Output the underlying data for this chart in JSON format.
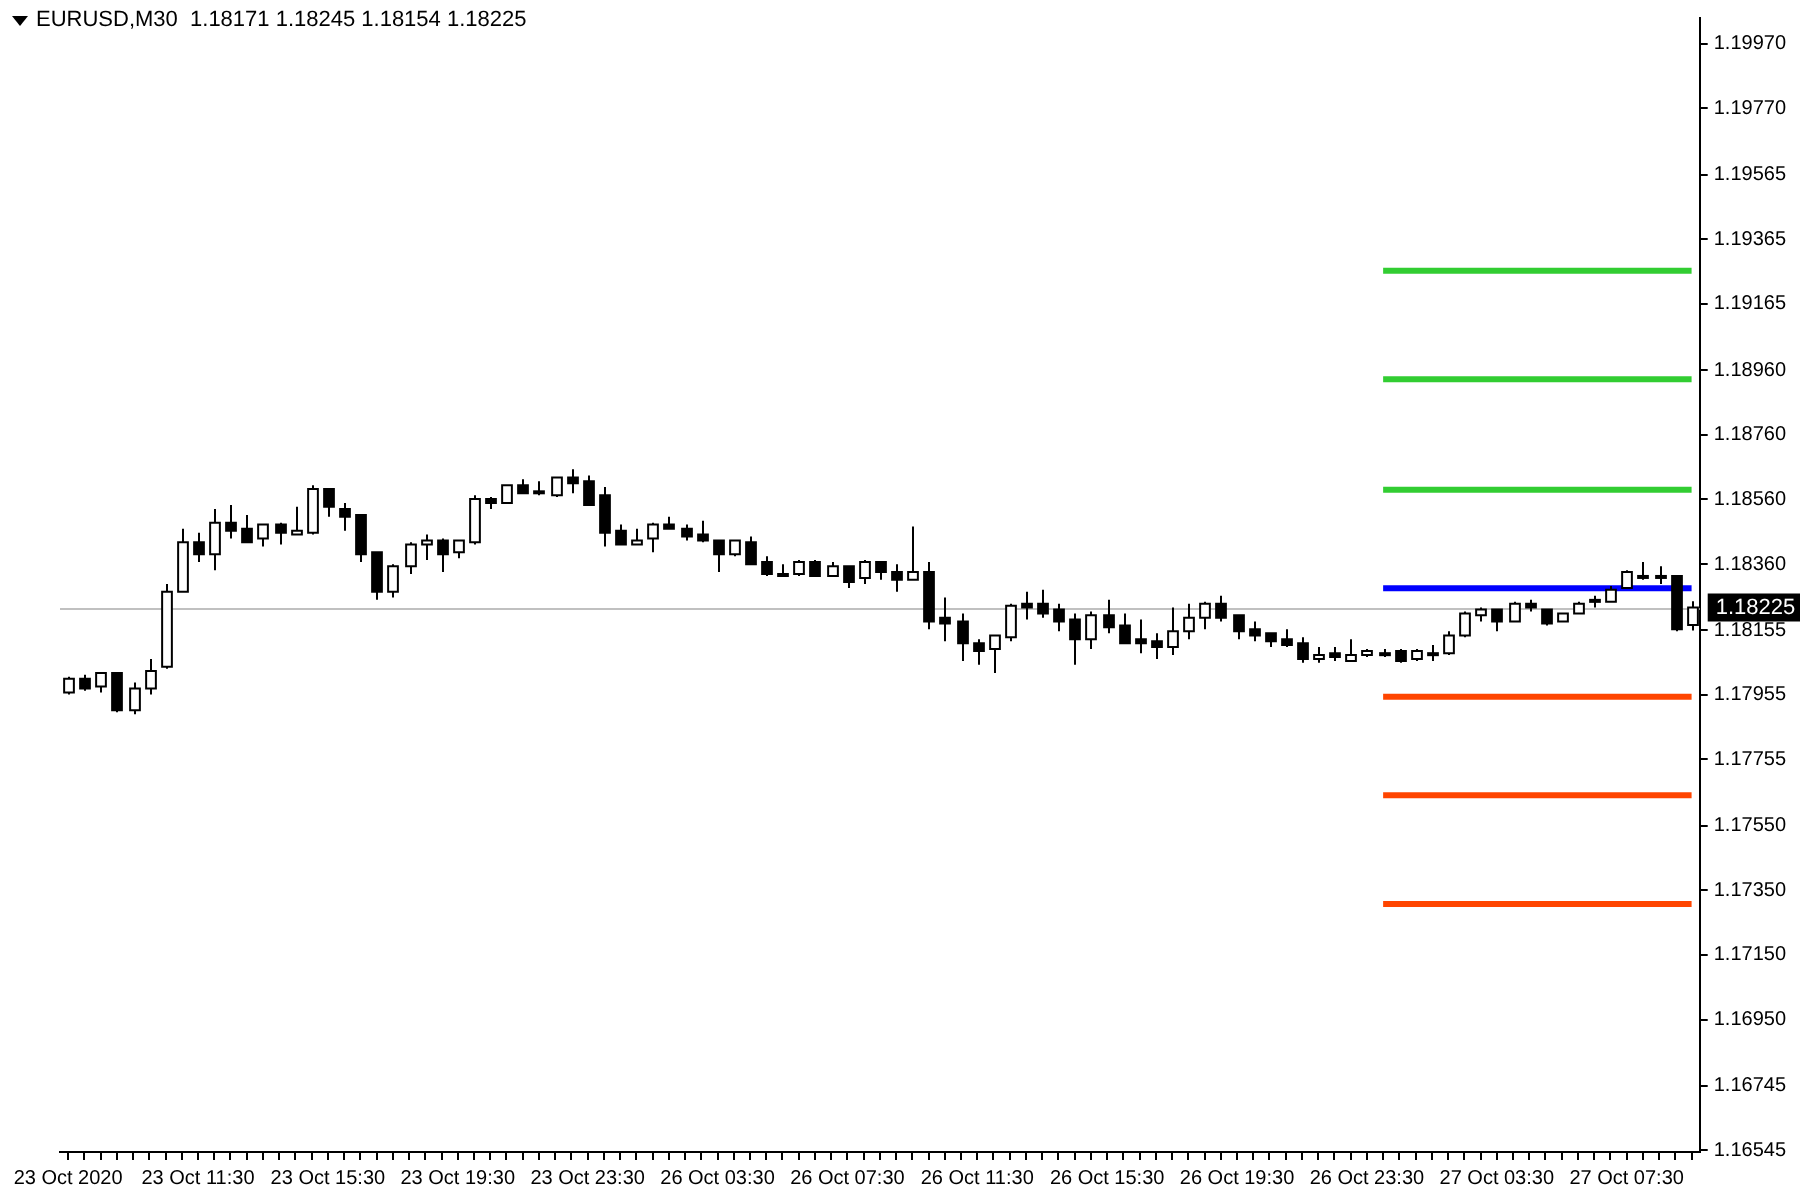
{
  "chart_data": {
    "type": "candlestick",
    "title": "EURUSD,M30  1.18171 1.18245 1.18154 1.18225",
    "categories": [
      "23 Oct 2020",
      null,
      null,
      null,
      null,
      null,
      null,
      null,
      "23 Oct 11:30",
      null,
      null,
      null,
      null,
      null,
      null,
      null,
      "23 Oct 15:30",
      null,
      null,
      null,
      null,
      null,
      null,
      null,
      "23 Oct 19:30",
      null,
      null,
      null,
      null,
      null,
      null,
      null,
      "23 Oct 23:30",
      null,
      null,
      null,
      null,
      null,
      null,
      null,
      "26 Oct 03:30",
      null,
      null,
      null,
      null,
      null,
      null,
      null,
      "26 Oct 07:30",
      null,
      null,
      null,
      null,
      null,
      null,
      null,
      "26 Oct 11:30",
      null,
      null,
      null,
      null,
      null,
      null,
      null,
      "26 Oct 15:30",
      null,
      null,
      null,
      null,
      null,
      null,
      null,
      "26 Oct 19:30",
      null,
      null,
      null,
      null,
      null,
      null,
      null,
      "26 Oct 23:30",
      null,
      null,
      null,
      null,
      null,
      null,
      null,
      "27 Oct 03:30",
      null,
      null,
      null,
      null,
      null,
      null,
      null,
      "27 Oct 07:30",
      null,
      null,
      null,
      null
    ],
    "ohlc": [
      [
        1.17962,
        1.18011,
        1.17956,
        1.18005
      ],
      [
        1.18005,
        1.18017,
        1.17968,
        1.17975
      ],
      [
        1.17981,
        1.18023,
        1.17962,
        1.18023
      ],
      [
        1.18023,
        1.18023,
        1.17901,
        1.17907
      ],
      [
        1.17907,
        1.17993,
        1.17895,
        1.17975
      ],
      [
        1.17975,
        1.18066,
        1.17956,
        1.18029
      ],
      [
        1.18042,
        1.18298,
        1.18036,
        1.18274
      ],
      [
        1.18274,
        1.18469,
        1.18274,
        1.18427
      ],
      [
        1.18427,
        1.18457,
        1.18366,
        1.1839
      ],
      [
        1.1839,
        1.1853,
        1.18341,
        1.18488
      ],
      [
        1.18488,
        1.18543,
        1.18439,
        1.18463
      ],
      [
        1.18469,
        1.18512,
        1.18427,
        1.18427
      ],
      [
        1.18439,
        1.18482,
        1.18414,
        1.18482
      ],
      [
        1.18482,
        1.18488,
        1.1842,
        1.18457
      ],
      [
        1.18451,
        1.18537,
        1.18451,
        1.18463
      ],
      [
        1.18457,
        1.18604,
        1.18451,
        1.18592
      ],
      [
        1.18592,
        1.18592,
        1.18506,
        1.18537
      ],
      [
        1.1853,
        1.18549,
        1.18463,
        1.18506
      ],
      [
        1.18512,
        1.18512,
        1.18366,
        1.1839
      ],
      [
        1.18396,
        1.18396,
        1.18249,
        1.18274
      ],
      [
        1.18274,
        1.18359,
        1.18256,
        1.18353
      ],
      [
        1.18353,
        1.18427,
        1.18329,
        1.1842
      ],
      [
        1.1842,
        1.18451,
        1.18372,
        1.18433
      ],
      [
        1.18433,
        1.18439,
        1.18335,
        1.1839
      ],
      [
        1.18396,
        1.18433,
        1.18378,
        1.18433
      ],
      [
        1.18427,
        1.18573,
        1.1842,
        1.18561
      ],
      [
        1.18561,
        1.18567,
        1.1853,
        1.18549
      ],
      [
        1.18549,
        1.18604,
        1.18549,
        1.18604
      ],
      [
        1.18604,
        1.18622,
        1.18579,
        1.18579
      ],
      [
        1.18585,
        1.18616,
        1.18573,
        1.18585
      ],
      [
        1.18573,
        1.18628,
        1.18567,
        1.18628
      ],
      [
        1.18628,
        1.18653,
        1.18579,
        1.1861
      ],
      [
        1.18616,
        1.18634,
        1.18543,
        1.18543
      ],
      [
        1.18573,
        1.18598,
        1.18414,
        1.18457
      ],
      [
        1.18463,
        1.18482,
        1.1842,
        1.1842
      ],
      [
        1.1842,
        1.18469,
        1.1842,
        1.18433
      ],
      [
        1.18439,
        1.18488,
        1.18396,
        1.18482
      ],
      [
        1.18482,
        1.18506,
        1.18469,
        1.18469
      ],
      [
        1.18469,
        1.18482,
        1.18433,
        1.18445
      ],
      [
        1.18451,
        1.18494,
        1.18427,
        1.18433
      ],
      [
        1.18433,
        1.18433,
        1.18335,
        1.1839
      ],
      [
        1.1839,
        1.18433,
        1.18384,
        1.18433
      ],
      [
        1.18427,
        1.18445,
        1.18359,
        1.18359
      ],
      [
        1.18366,
        1.18384,
        1.18323,
        1.18329
      ],
      [
        1.18329,
        1.18359,
        1.18323,
        1.18329
      ],
      [
        1.18329,
        1.18372,
        1.18323,
        1.18366
      ],
      [
        1.18366,
        1.18372,
        1.18323,
        1.18323
      ],
      [
        1.18323,
        1.18366,
        1.18323,
        1.18353
      ],
      [
        1.18353,
        1.18353,
        1.18286,
        1.18304
      ],
      [
        1.18317,
        1.18372,
        1.18298,
        1.18366
      ],
      [
        1.18366,
        1.18366,
        1.18311,
        1.18335
      ],
      [
        1.18335,
        1.18359,
        1.18274,
        1.18311
      ],
      [
        1.18311,
        1.18476,
        1.18311,
        1.18335
      ],
      [
        1.18335,
        1.18366,
        1.18158,
        1.18182
      ],
      [
        1.18194,
        1.18256,
        1.18121,
        1.18176
      ],
      [
        1.18182,
        1.18207,
        1.1806,
        1.18115
      ],
      [
        1.18115,
        1.18127,
        1.18048,
        1.18091
      ],
      [
        1.18097,
        1.18139,
        1.18023,
        1.18139
      ],
      [
        1.18133,
        1.18237,
        1.18121,
        1.18231
      ],
      [
        1.18237,
        1.18274,
        1.18188,
        1.18225
      ],
      [
        1.18237,
        1.1828,
        1.18194,
        1.18207
      ],
      [
        1.18219,
        1.18237,
        1.18152,
        1.18182
      ],
      [
        1.18188,
        1.18207,
        1.18048,
        1.18127
      ],
      [
        1.18127,
        1.18213,
        1.18097,
        1.18201
      ],
      [
        1.18201,
        1.18249,
        1.18146,
        1.18164
      ],
      [
        1.1817,
        1.18207,
        1.18115,
        1.18115
      ],
      [
        1.18127,
        1.18188,
        1.18084,
        1.18115
      ],
      [
        1.18121,
        1.18146,
        1.18066,
        1.18103
      ],
      [
        1.18103,
        1.18225,
        1.18078,
        1.18152
      ],
      [
        1.18152,
        1.18237,
        1.18127,
        1.18194
      ],
      [
        1.18194,
        1.18243,
        1.18158,
        1.18237
      ],
      [
        1.18237,
        1.18262,
        1.18182,
        1.18194
      ],
      [
        1.18201,
        1.18201,
        1.18127,
        1.18152
      ],
      [
        1.18158,
        1.18182,
        1.18121,
        1.18139
      ],
      [
        1.18146,
        1.18146,
        1.18103,
        1.18121
      ],
      [
        1.18127,
        1.18158,
        1.18103,
        1.18109
      ],
      [
        1.18115,
        1.18133,
        1.18054,
        1.18066
      ],
      [
        1.18066,
        1.18103,
        1.18054,
        1.18078
      ],
      [
        1.18084,
        1.18103,
        1.1806,
        1.18072
      ],
      [
        1.1806,
        1.18127,
        1.1806,
        1.18078
      ],
      [
        1.18078,
        1.18097,
        1.18072,
        1.18091
      ],
      [
        1.18084,
        1.18097,
        1.18072,
        1.18084
      ],
      [
        1.18091,
        1.18097,
        1.18054,
        1.1806
      ],
      [
        1.18066,
        1.18097,
        1.1806,
        1.18091
      ],
      [
        1.18084,
        1.18109,
        1.1806,
        1.18084
      ],
      [
        1.18084,
        1.18152,
        1.18078,
        1.18139
      ],
      [
        1.18139,
        1.18213,
        1.18133,
        1.18207
      ],
      [
        1.18201,
        1.18225,
        1.18182,
        1.18219
      ],
      [
        1.18219,
        1.18219,
        1.18152,
        1.18182
      ],
      [
        1.18182,
        1.18243,
        1.18182,
        1.18237
      ],
      [
        1.18237,
        1.18249,
        1.18213,
        1.18225
      ],
      [
        1.18219,
        1.18219,
        1.1817,
        1.18176
      ],
      [
        1.18182,
        1.18207,
        1.18182,
        1.18207
      ],
      [
        1.18207,
        1.18243,
        1.18207,
        1.18237
      ],
      [
        1.18243,
        1.18262,
        1.18225,
        1.18249
      ],
      [
        1.18243,
        1.18292,
        1.18243,
        1.1828
      ],
      [
        1.18286,
        1.18341,
        1.18286,
        1.18335
      ],
      [
        1.18323,
        1.18366,
        1.18311,
        1.18323
      ],
      [
        1.18323,
        1.18353,
        1.18298,
        1.18323
      ],
      [
        1.18323,
        1.18323,
        1.18152,
        1.18158
      ],
      [
        1.18171,
        1.18245,
        1.18154,
        1.18225
      ]
    ],
    "series": [
      {
        "type": "line",
        "color": "#32cd32",
        "values": [
          null,
          null,
          null,
          null,
          null,
          null,
          null,
          null,
          null,
          null,
          null,
          null,
          null,
          null,
          null,
          null,
          null,
          null,
          null,
          null,
          null,
          null,
          null,
          null,
          null,
          null,
          null,
          null,
          null,
          null,
          null,
          null,
          null,
          null,
          null,
          null,
          null,
          null,
          null,
          null,
          null,
          null,
          null,
          null,
          null,
          null,
          null,
          null,
          null,
          null,
          null,
          null,
          null,
          null,
          null,
          null,
          null,
          null,
          null,
          null,
          null,
          null,
          null,
          null,
          null,
          null,
          null,
          null,
          null,
          null,
          null,
          null,
          null,
          null,
          null,
          null,
          null,
          null,
          null,
          null,
          null,
          1.19268,
          1.19268,
          1.19268,
          1.19268,
          1.19268,
          1.19268,
          1.19268,
          1.19268,
          1.19268,
          1.19268,
          1.19268,
          1.19268,
          1.19268,
          1.19268,
          1.19268,
          1.19268,
          1.19268,
          1.19268,
          1.19268,
          1.19268
        ]
      },
      {
        "type": "line",
        "color": "#32cd32",
        "values": [
          null,
          null,
          null,
          null,
          null,
          null,
          null,
          null,
          null,
          null,
          null,
          null,
          null,
          null,
          null,
          null,
          null,
          null,
          null,
          null,
          null,
          null,
          null,
          null,
          null,
          null,
          null,
          null,
          null,
          null,
          null,
          null,
          null,
          null,
          null,
          null,
          null,
          null,
          null,
          null,
          null,
          null,
          null,
          null,
          null,
          null,
          null,
          null,
          null,
          null,
          null,
          null,
          null,
          null,
          null,
          null,
          null,
          null,
          null,
          null,
          null,
          null,
          null,
          null,
          null,
          null,
          null,
          null,
          null,
          null,
          null,
          null,
          null,
          null,
          null,
          null,
          null,
          null,
          null,
          null,
          null,
          1.18932,
          1.18932,
          1.18932,
          1.18932,
          1.18932,
          1.18932,
          1.18932,
          1.18932,
          1.18932,
          1.18932,
          1.18932,
          1.18932,
          1.18932,
          1.18932,
          1.18932,
          1.18932,
          1.18932,
          1.18932,
          1.18932,
          1.18932
        ]
      },
      {
        "type": "line",
        "color": "#32cd32",
        "values": [
          null,
          null,
          null,
          null,
          null,
          null,
          null,
          null,
          null,
          null,
          null,
          null,
          null,
          null,
          null,
          null,
          null,
          null,
          null,
          null,
          null,
          null,
          null,
          null,
          null,
          null,
          null,
          null,
          null,
          null,
          null,
          null,
          null,
          null,
          null,
          null,
          null,
          null,
          null,
          null,
          null,
          null,
          null,
          null,
          null,
          null,
          null,
          null,
          null,
          null,
          null,
          null,
          null,
          null,
          null,
          null,
          null,
          null,
          null,
          null,
          null,
          null,
          null,
          null,
          null,
          null,
          null,
          null,
          null,
          null,
          null,
          null,
          null,
          null,
          null,
          null,
          null,
          null,
          null,
          null,
          null,
          1.1859,
          1.1859,
          1.1859,
          1.1859,
          1.1859,
          1.1859,
          1.1859,
          1.1859,
          1.1859,
          1.1859,
          1.1859,
          1.1859,
          1.1859,
          1.1859,
          1.1859,
          1.1859,
          1.1859,
          1.1859,
          1.1859,
          1.1859
        ]
      },
      {
        "type": "line",
        "color": "#0000ff",
        "values": [
          null,
          null,
          null,
          null,
          null,
          null,
          null,
          null,
          null,
          null,
          null,
          null,
          null,
          null,
          null,
          null,
          null,
          null,
          null,
          null,
          null,
          null,
          null,
          null,
          null,
          null,
          null,
          null,
          null,
          null,
          null,
          null,
          null,
          null,
          null,
          null,
          null,
          null,
          null,
          null,
          null,
          null,
          null,
          null,
          null,
          null,
          null,
          null,
          null,
          null,
          null,
          null,
          null,
          null,
          null,
          null,
          null,
          null,
          null,
          null,
          null,
          null,
          null,
          null,
          null,
          null,
          null,
          null,
          null,
          null,
          null,
          null,
          null,
          null,
          null,
          null,
          null,
          null,
          null,
          null,
          null,
          1.18285,
          1.18285,
          1.18285,
          1.18285,
          1.18285,
          1.18285,
          1.18285,
          1.18285,
          1.18285,
          1.18285,
          1.18285,
          1.18285,
          1.18285,
          1.18285,
          1.18285,
          1.18285,
          1.18285,
          1.18285,
          1.18285,
          1.18285
        ]
      },
      {
        "type": "line",
        "color": "#ff4500",
        "values": [
          null,
          null,
          null,
          null,
          null,
          null,
          null,
          null,
          null,
          null,
          null,
          null,
          null,
          null,
          null,
          null,
          null,
          null,
          null,
          null,
          null,
          null,
          null,
          null,
          null,
          null,
          null,
          null,
          null,
          null,
          null,
          null,
          null,
          null,
          null,
          null,
          null,
          null,
          null,
          null,
          null,
          null,
          null,
          null,
          null,
          null,
          null,
          null,
          null,
          null,
          null,
          null,
          null,
          null,
          null,
          null,
          null,
          null,
          null,
          null,
          null,
          null,
          null,
          null,
          null,
          null,
          null,
          null,
          null,
          null,
          null,
          null,
          null,
          null,
          null,
          null,
          null,
          null,
          null,
          null,
          null,
          1.17949,
          1.17949,
          1.17949,
          1.17949,
          1.17949,
          1.17949,
          1.17949,
          1.17949,
          1.17949,
          1.17949,
          1.17949,
          1.17949,
          1.17949,
          1.17949,
          1.17949,
          1.17949,
          1.17949,
          1.17949,
          1.17949,
          1.17949
        ]
      },
      {
        "type": "line",
        "color": "#ff4500",
        "values": [
          null,
          null,
          null,
          null,
          null,
          null,
          null,
          null,
          null,
          null,
          null,
          null,
          null,
          null,
          null,
          null,
          null,
          null,
          null,
          null,
          null,
          null,
          null,
          null,
          null,
          null,
          null,
          null,
          null,
          null,
          null,
          null,
          null,
          null,
          null,
          null,
          null,
          null,
          null,
          null,
          null,
          null,
          null,
          null,
          null,
          null,
          null,
          null,
          null,
          null,
          null,
          null,
          null,
          null,
          null,
          null,
          null,
          null,
          null,
          null,
          null,
          null,
          null,
          null,
          null,
          null,
          null,
          null,
          null,
          null,
          null,
          null,
          null,
          null,
          null,
          null,
          null,
          null,
          null,
          null,
          null,
          1.17644,
          1.17644,
          1.17644,
          1.17644,
          1.17644,
          1.17644,
          1.17644,
          1.17644,
          1.17644,
          1.17644,
          1.17644,
          1.17644,
          1.17644,
          1.17644,
          1.17644,
          1.17644,
          1.17644,
          1.17644,
          1.17644,
          1.17644
        ]
      },
      {
        "type": "line",
        "color": "#ff4500",
        "values": [
          null,
          null,
          null,
          null,
          null,
          null,
          null,
          null,
          null,
          null,
          null,
          null,
          null,
          null,
          null,
          null,
          null,
          null,
          null,
          null,
          null,
          null,
          null,
          null,
          null,
          null,
          null,
          null,
          null,
          null,
          null,
          null,
          null,
          null,
          null,
          null,
          null,
          null,
          null,
          null,
          null,
          null,
          null,
          null,
          null,
          null,
          null,
          null,
          null,
          null,
          null,
          null,
          null,
          null,
          null,
          null,
          null,
          null,
          null,
          null,
          null,
          null,
          null,
          null,
          null,
          null,
          null,
          null,
          null,
          null,
          null,
          null,
          null,
          null,
          null,
          null,
          null,
          null,
          null,
          null,
          null,
          1.17308,
          1.17308,
          1.17308,
          1.17308,
          1.17308,
          1.17308,
          1.17308,
          1.17308,
          1.17308,
          1.17308,
          1.17308,
          1.17308,
          1.17308,
          1.17308,
          1.17308,
          1.17308,
          1.17308,
          1.17308,
          1.17308,
          1.17308
        ]
      }
    ],
    "ref_lines": [
      {
        "axis": "y",
        "value": 1.18225,
        "label": "1.18225",
        "color": "#c0c0c0"
      }
    ],
    "ylim": [
      1.1654,
      1.2005
    ],
    "yticks": [
      {
        "value": 1.1997,
        "label": "1.19970"
      },
      {
        "value": 1.1977,
        "label": "1.19770"
      },
      {
        "value": 1.19565,
        "label": "1.19565"
      },
      {
        "value": 1.19365,
        "label": "1.19365"
      },
      {
        "value": 1.19165,
        "label": "1.19165"
      },
      {
        "value": 1.1896,
        "label": "1.18960"
      },
      {
        "value": 1.1876,
        "label": "1.18760"
      },
      {
        "value": 1.1856,
        "label": "1.18560"
      },
      {
        "value": 1.1836,
        "label": "1.18360"
      },
      {
        "value": 1.18155,
        "label": "1.18155"
      },
      {
        "value": 1.17955,
        "label": "1.17955"
      },
      {
        "value": 1.17755,
        "label": "1.17755"
      },
      {
        "value": 1.1755,
        "label": "1.17550"
      },
      {
        "value": 1.1735,
        "label": "1.17350"
      },
      {
        "value": 1.1715,
        "label": "1.17150"
      },
      {
        "value": 1.1695,
        "label": "1.16950"
      },
      {
        "value": 1.16745,
        "label": "1.16745"
      },
      {
        "value": 1.16545,
        "label": "1.16545"
      }
    ]
  }
}
